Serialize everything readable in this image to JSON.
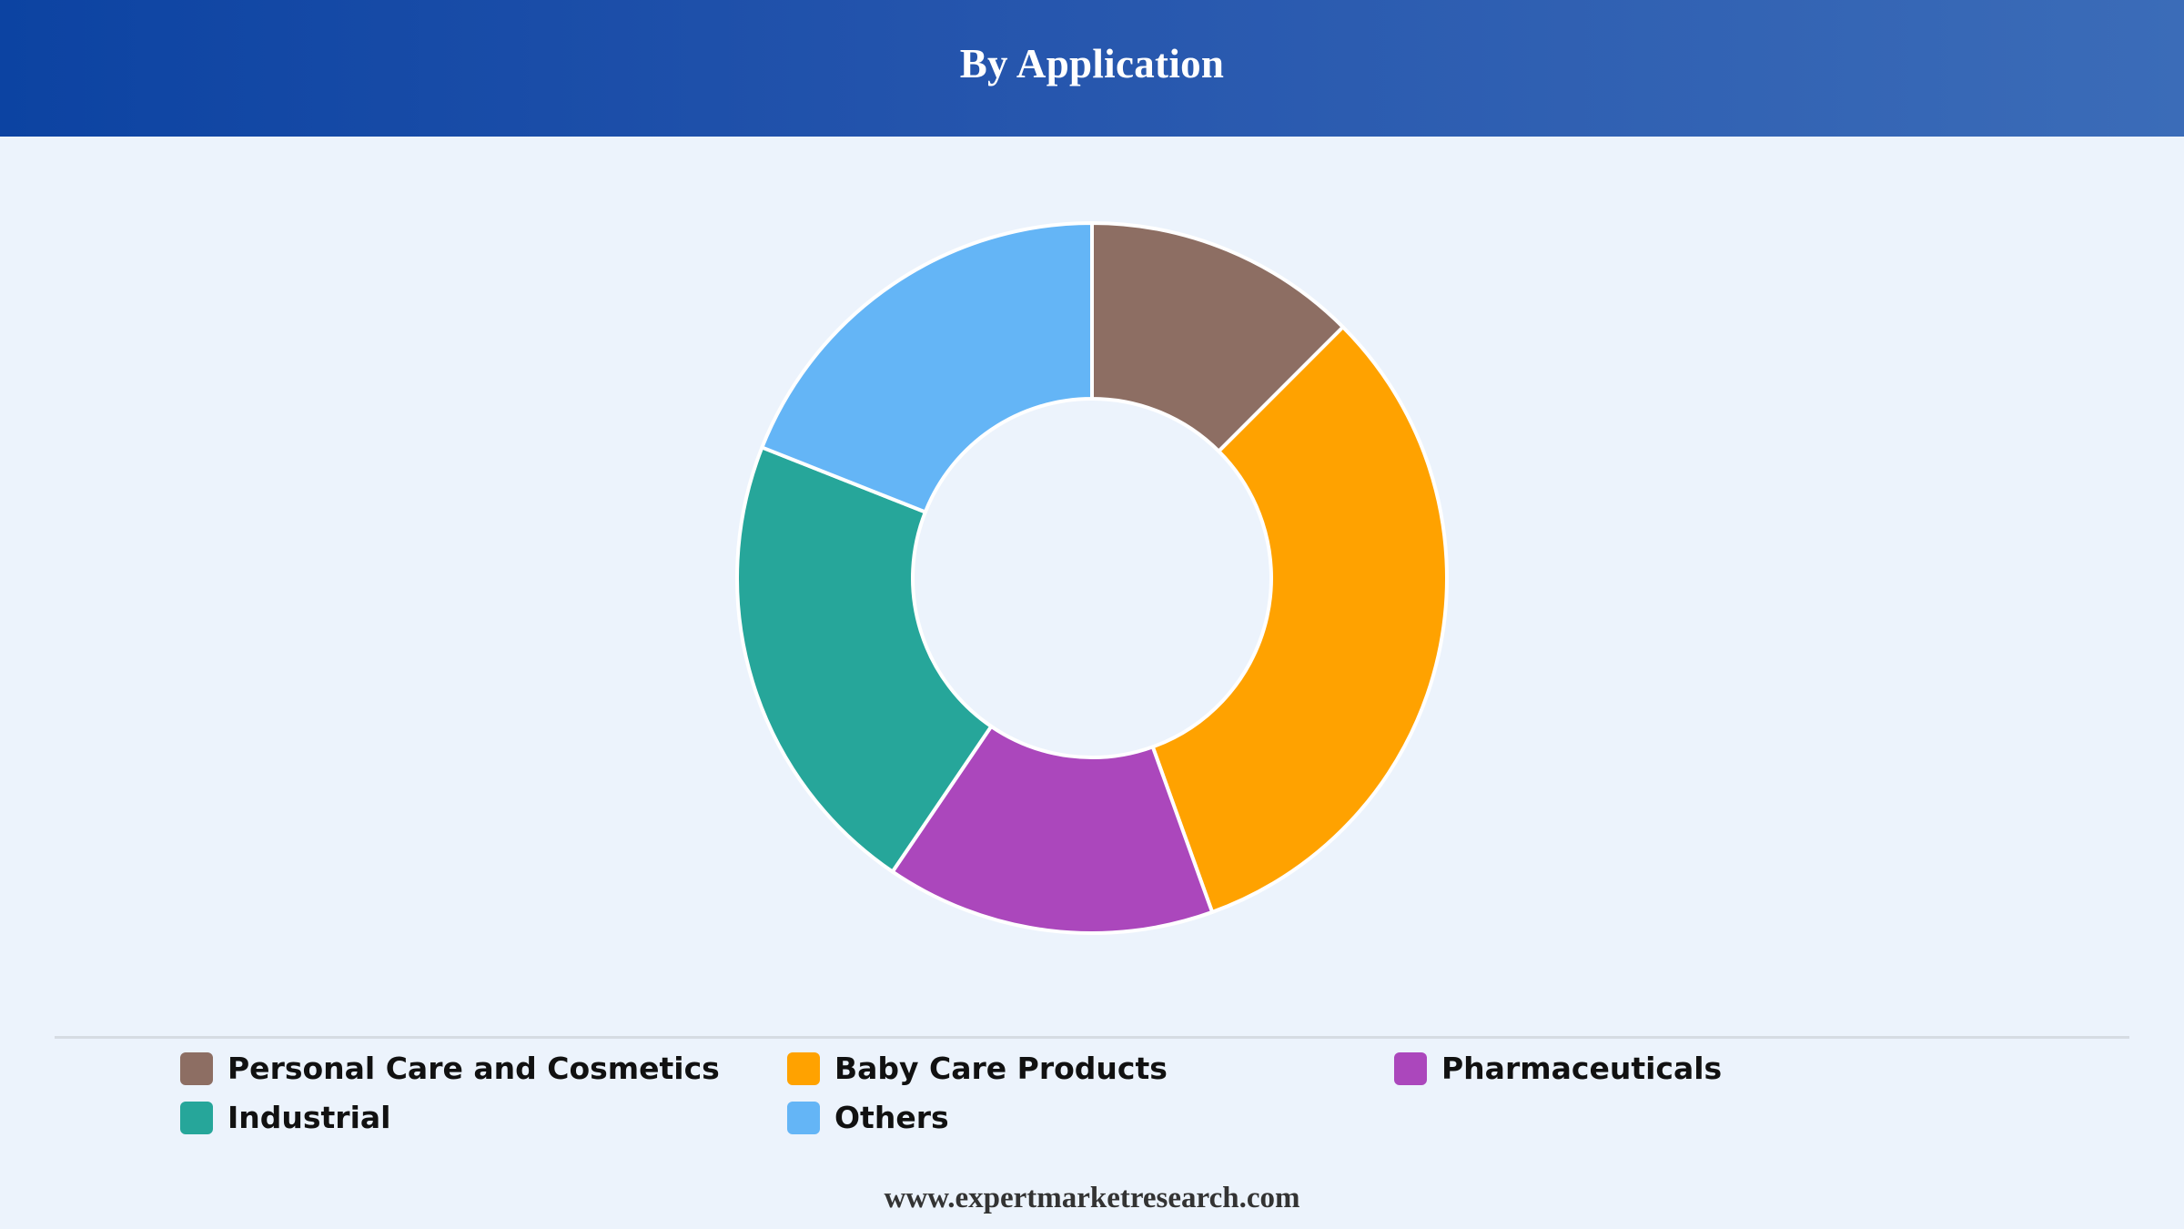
{
  "header": {
    "title": "By Application"
  },
  "chart_data": {
    "type": "pie",
    "variant": "donut",
    "title": "By Application",
    "categories": [
      "Personal Care and Cosmetics",
      "Baby Care Products",
      "Pharmaceuticals",
      "Industrial",
      "Others"
    ],
    "values": [
      12.5,
      32.0,
      15.0,
      21.5,
      19.0
    ],
    "colors": [
      "#8d6e63",
      "#ffa200",
      "#ab47bc",
      "#26a69a",
      "#64b5f6"
    ],
    "legend_position": "bottom"
  },
  "legend": {
    "items": [
      {
        "label": "Personal Care and Cosmetics",
        "color": "#8d6e63"
      },
      {
        "label": "Baby Care Products",
        "color": "#ffa200"
      },
      {
        "label": "Pharmaceuticals",
        "color": "#ab47bc"
      },
      {
        "label": "Industrial",
        "color": "#26a69a"
      },
      {
        "label": "Others",
        "color": "#64b5f6"
      }
    ]
  },
  "footer": {
    "source": "www.expertmarketresearch.com"
  }
}
